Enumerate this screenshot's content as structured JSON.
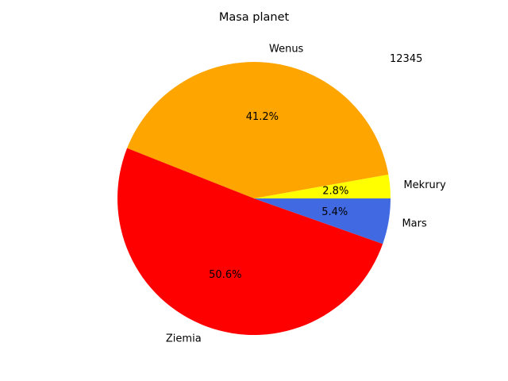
{
  "chart_data": {
    "type": "pie",
    "title": "Masa planet",
    "annotation": "12345",
    "slices": [
      {
        "label": "Mekrury",
        "value": 2.8,
        "percent_label": "2.8%",
        "color": "#ffff00"
      },
      {
        "label": "Wenus",
        "value": 41.2,
        "percent_label": "41.2%",
        "color": "#ffa500"
      },
      {
        "label": "Ziemia",
        "value": 50.6,
        "percent_label": "50.6%",
        "color": "#ff0000"
      },
      {
        "label": "Mars",
        "value": 5.4,
        "percent_label": "5.4%",
        "color": "#4169e1"
      }
    ],
    "start_angle_deg": 0,
    "direction": "counterclockwise"
  }
}
